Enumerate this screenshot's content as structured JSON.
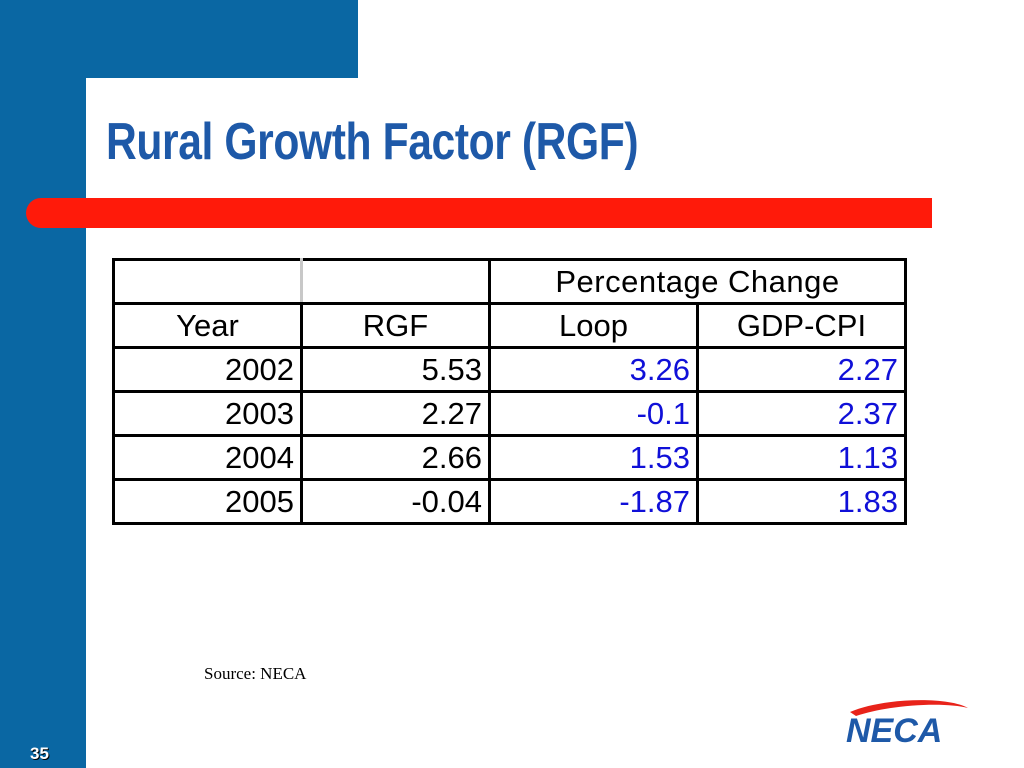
{
  "slide": {
    "title": "Rural Growth Factor (RGF)",
    "page_number": "35",
    "source": "Source: NECA",
    "logo_text": "NECA"
  },
  "colors": {
    "frame_blue": "#0a67a3",
    "title_blue": "#1e59a8",
    "rule_red": "#ff1a0a",
    "value_blue": "#1010d8"
  },
  "table": {
    "group_header": "Percentage Change",
    "columns": [
      "Year",
      "RGF",
      "Loop",
      "GDP-CPI"
    ],
    "rows": [
      [
        "2002",
        "5.53",
        "3.26",
        "2.27"
      ],
      [
        "2003",
        "2.27",
        "-0.1",
        "2.37"
      ],
      [
        "2004",
        "2.66",
        "1.53",
        "1.13"
      ],
      [
        "2005",
        "-0.04",
        "-1.87",
        "1.83"
      ]
    ]
  }
}
